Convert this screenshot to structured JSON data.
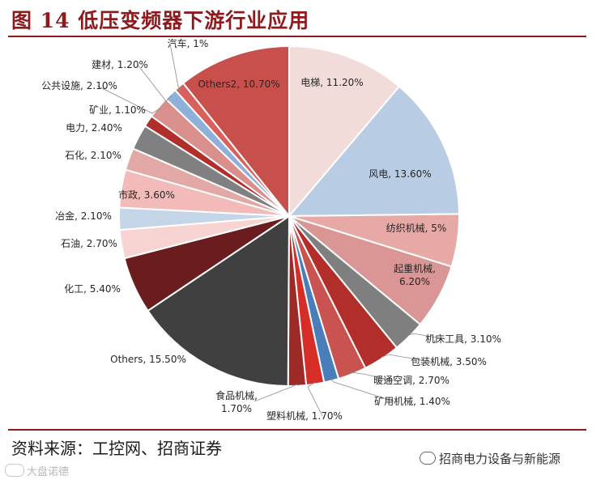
{
  "figure": {
    "title": "图 14 低压变频器下游行业应用",
    "source": "资料来源：工控网、招商证券",
    "watermark_right": "招商电力设备与新能源",
    "watermark_left": "大盘诺德"
  },
  "chart_data": {
    "type": "pie",
    "start": "12 o'clock",
    "direction": "clockwise",
    "labels": [
      "电梯",
      "风电",
      "纺织机械",
      "起重机械",
      "机床工具",
      "包装机械",
      "暖通空调",
      "矿用机械",
      "塑料机械",
      "食品机械",
      "Others",
      "化工",
      "石油",
      "冶金",
      "市政",
      "石化",
      "电力",
      "矿业",
      "公共设施",
      "建材",
      "汽车",
      "Others2"
    ],
    "values": [
      11.2,
      13.6,
      5,
      6.2,
      3.1,
      3.5,
      2.7,
      1.4,
      1.7,
      1.7,
      15.5,
      5.4,
      2.7,
      2.1,
      3.6,
      2.1,
      2.4,
      1.1,
      2.1,
      1.2,
      1,
      10.7
    ],
    "label_text": [
      "电梯, 11.20%",
      "风电, 13.60%",
      "纺织机械, 5%",
      "起重机械,|6.20%",
      "机床工具, 3.10%",
      "包装机械, 3.50%",
      "暖通空调, 2.70%",
      "矿用机械, 1.40%",
      "塑料机械, 1.70%",
      "食品机械,|1.70%",
      "Others, 15.50%",
      "化工, 5.40%",
      "石油, 2.70%",
      "冶金, 2.10%",
      "市政, 3.60%",
      "石化, 2.10%",
      "电力, 2.40%",
      "矿业, 1.10%",
      "公共设施, 2.10%",
      "建材, 1.20%",
      "汽车, 1%",
      "Others2, 10.70%"
    ],
    "colors": [
      "#f2dcda",
      "#b8cce4",
      "#e6a9a6",
      "#d99694",
      "#7f7f7f",
      "#b22e2a",
      "#c85350",
      "#4a7ebb",
      "#d62d27",
      "#9e2a27",
      "#404040",
      "#6b1c1c",
      "#f7d4d2",
      "#c5d5e8",
      "#f2bbb9",
      "#e1a8a5",
      "#808080",
      "#b22e2a",
      "#d9908d",
      "#8fb0d9",
      "#d9605c",
      "#c8504c"
    ]
  }
}
